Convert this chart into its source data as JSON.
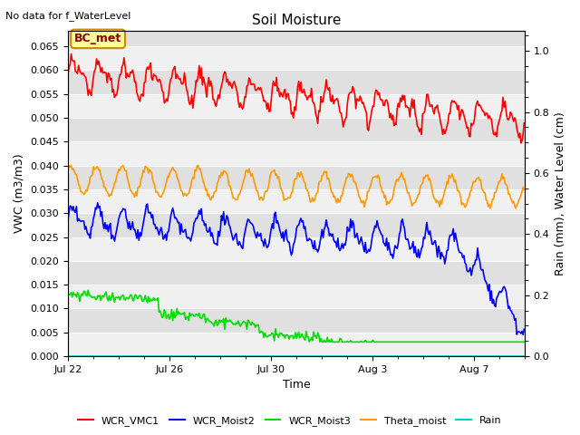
{
  "title": "Soil Moisture",
  "top_left_text": "No data for f_WaterLevel",
  "annotation_box": "BC_met",
  "xlabel": "Time",
  "ylabel_left": "VWC (m3/m3)",
  "ylabel_right": "Rain (mm), Water Level (cm)",
  "ylim_left": [
    0.0,
    0.0683
  ],
  "ylim_right": [
    0.0,
    1.067
  ],
  "background_color": "#ffffff",
  "plot_bg_color": "#e8e8e8",
  "band_color_light": "#f0f0f0",
  "band_color_dark": "#e0e0e0",
  "grid_color": "#ffffff",
  "series": {
    "WCR_VMC1": {
      "color": "#ff0000",
      "linewidth": 1.2
    },
    "WCR_Moist2": {
      "color": "#0000ff",
      "linewidth": 1.2
    },
    "WCR_Moist3": {
      "color": "#00dd00",
      "linewidth": 1.2
    },
    "Theta_moist": {
      "color": "#ff9900",
      "linewidth": 1.2
    },
    "Rain": {
      "color": "#00cccc",
      "linewidth": 1.2
    }
  },
  "xtick_labels": [
    "Jul 22",
    "Jul 26",
    "Jul 30",
    "Aug 3",
    "Aug 7"
  ],
  "xtick_positions": [
    0,
    4,
    8,
    12,
    16
  ],
  "yticks_left": [
    0.0,
    0.005,
    0.01,
    0.015,
    0.02,
    0.025,
    0.03,
    0.035,
    0.04,
    0.045,
    0.05,
    0.055,
    0.06,
    0.065
  ],
  "yticks_right": [
    0.0,
    0.2,
    0.4,
    0.6,
    0.8,
    1.0
  ],
  "total_days": 18,
  "title_fontsize": 11,
  "axis_fontsize": 9,
  "tick_fontsize": 8
}
